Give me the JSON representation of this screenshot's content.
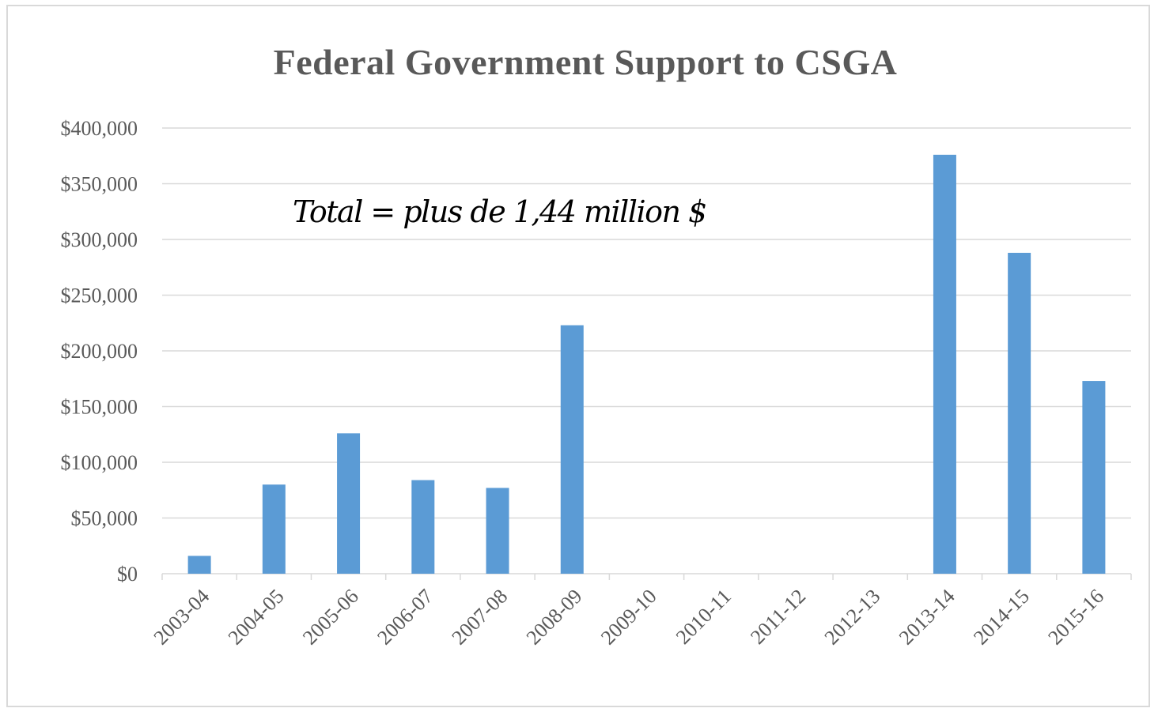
{
  "chart_data": {
    "type": "bar",
    "title": "Federal Government Support to CSGA",
    "annotation": "Total = plus de 1,44 million $",
    "categories": [
      "2003-04",
      "2004-05",
      "2005-06",
      "2006-07",
      "2007-08",
      "2008-09",
      "2009-10",
      "2010-11",
      "2011-12",
      "2012-13",
      "2013-14",
      "2014-15",
      "2015-16"
    ],
    "series": [
      {
        "values": [
          16000,
          80000,
          126000,
          84000,
          77000,
          223000,
          0,
          0,
          0,
          0,
          376000,
          288000,
          173000
        ],
        "color": "#5b9bd5"
      }
    ],
    "ylim": [
      0,
      400000
    ],
    "yticks": [
      0,
      50000,
      100000,
      150000,
      200000,
      250000,
      300000,
      350000,
      400000
    ],
    "ytick_labels": [
      "$0",
      "$50,000",
      "$100,000",
      "$150,000",
      "$200,000",
      "$250,000",
      "$300,000",
      "$350,000",
      "$400,000"
    ],
    "grid": true,
    "legend": "none"
  }
}
